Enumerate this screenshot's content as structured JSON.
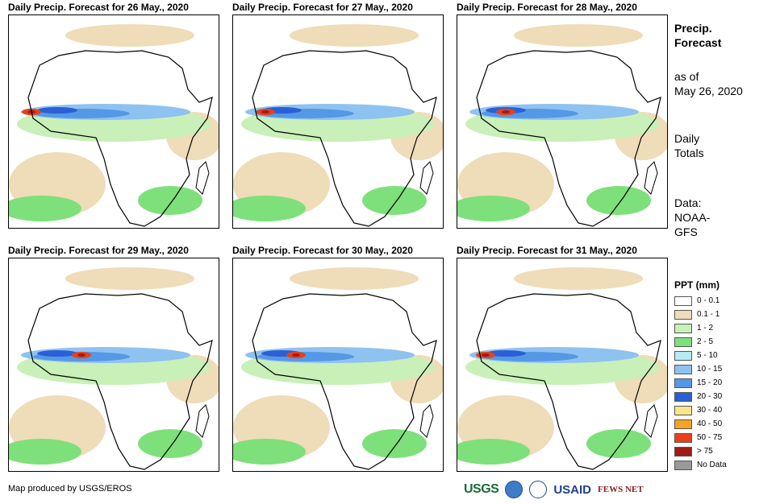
{
  "panels": [
    {
      "title": "Daily Precip. Forecast for 26 May., 2020"
    },
    {
      "title": "Daily Precip. Forecast for 27 May., 2020"
    },
    {
      "title": "Daily Precip. Forecast for 28 May., 2020"
    },
    {
      "title": "Daily Precip. Forecast for 29 May., 2020"
    },
    {
      "title": "Daily Precip. Forecast for 30 May., 2020"
    },
    {
      "title": "Daily Precip. Forecast for 31 May., 2020"
    }
  ],
  "side": {
    "heading_line1": "Precip.",
    "heading_line2": "Forecast",
    "asof_line1": "as of",
    "asof_line2": "May 26, 2020",
    "totals_line1": "Daily",
    "totals_line2": "Totals",
    "data_line1": "Data:",
    "data_line2": "NOAA-",
    "data_line3": "GFS"
  },
  "legend": {
    "title": "PPT (mm)",
    "items": [
      {
        "label": "0 - 0.1",
        "color": "#ffffff"
      },
      {
        "label": "0.1 - 1",
        "color": "#efdcb8"
      },
      {
        "label": "1 - 2",
        "color": "#c8f0b8"
      },
      {
        "label": "2 - 5",
        "color": "#7ee07a"
      },
      {
        "label": "5 - 10",
        "color": "#b4ecf6"
      },
      {
        "label": "10 - 15",
        "color": "#8ec2f0"
      },
      {
        "label": "15 - 20",
        "color": "#5598e6"
      },
      {
        "label": "20 - 30",
        "color": "#2a5fd6"
      },
      {
        "label": "30 - 40",
        "color": "#fbe48a"
      },
      {
        "label": "40 - 50",
        "color": "#f6a423"
      },
      {
        "label": "50 - 75",
        "color": "#e8401a"
      },
      {
        "label": "> 75",
        "color": "#a01c14"
      },
      {
        "label": "No Data",
        "color": "#999999"
      }
    ]
  },
  "footer": {
    "credit": "Map produced by USGS/EROS"
  },
  "logos": {
    "usgs": "USGS",
    "usaid": "USAID",
    "fews": "FEWS NET"
  }
}
